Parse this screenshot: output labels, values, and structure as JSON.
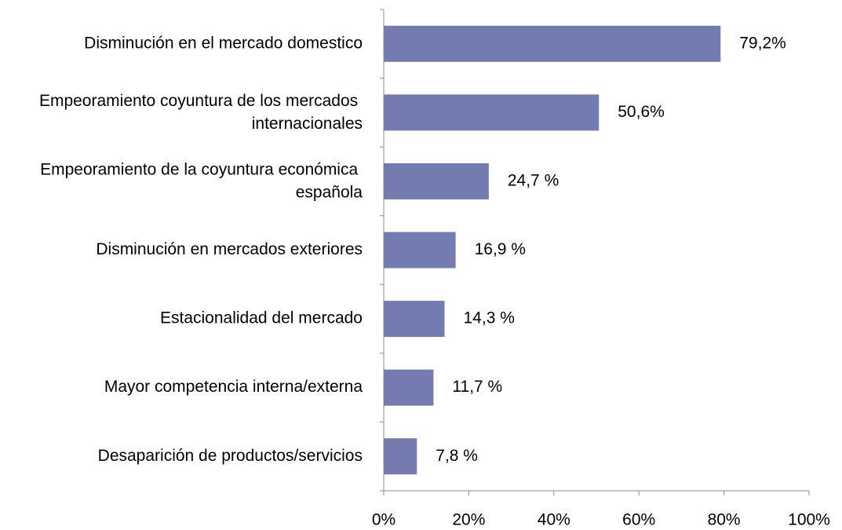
{
  "chart_data": {
    "type": "bar",
    "orientation": "horizontal",
    "categories": [
      "Disminución en el mercado domestico",
      "Empeoramiento coyuntura de los mercados internacionales",
      "Empeoramiento de la coyuntura económica española",
      "Disminución en mercados exteriores",
      "Estacionalidad del mercado",
      "Mayor competencia interna/externa",
      "Desaparición de productos/servicios"
    ],
    "values": [
      79.2,
      50.6,
      24.7,
      16.9,
      14.3,
      11.7,
      7.8
    ],
    "value_labels": [
      "79,2%",
      "50,6%",
      "24,7 %",
      "16,9 %",
      "14,3 %",
      "11,7 %",
      "7,8 %"
    ],
    "color": "#737bb0",
    "xlim": [
      0,
      100
    ],
    "xticks": [
      {
        "value": 0,
        "label": "0%"
      },
      {
        "value": 20,
        "label": "20%"
      },
      {
        "value": 40,
        "label": "40%"
      },
      {
        "value": 60,
        "label": "60%"
      },
      {
        "value": 80,
        "label": "80%"
      },
      {
        "value": 100,
        "label": "100%"
      }
    ],
    "grid": false
  }
}
